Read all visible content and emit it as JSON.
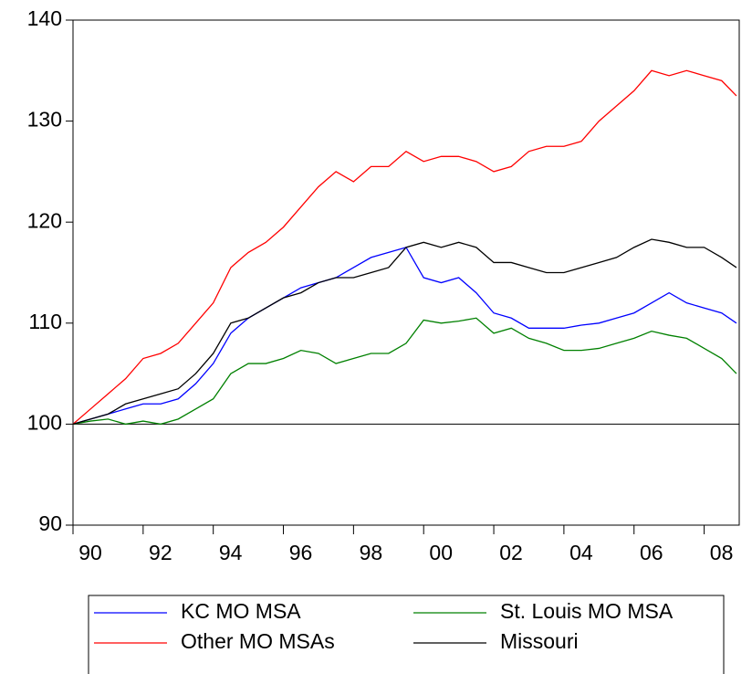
{
  "chart_data": {
    "type": "line",
    "x": [
      1990,
      1990.5,
      1991,
      1991.5,
      1992,
      1992.5,
      1993,
      1993.5,
      1994,
      1994.5,
      1995,
      1995.5,
      1996,
      1996.5,
      1997,
      1997.5,
      1998,
      1998.5,
      1999,
      1999.5,
      2000,
      2000.5,
      2001,
      2001.5,
      2002,
      2002.5,
      2003,
      2003.5,
      2004,
      2004.5,
      2005,
      2005.5,
      2006,
      2006.5,
      2007,
      2007.5,
      2008,
      2008.5,
      2008.92
    ],
    "series": [
      {
        "name": "KC MO MSA",
        "color": "#0000ff",
        "values": [
          100,
          100.5,
          101,
          101.5,
          102,
          102,
          102.5,
          104,
          106,
          109,
          110.5,
          111.5,
          112.5,
          113.5,
          114,
          114.5,
          115.5,
          116.5,
          117,
          117.5,
          114.5,
          114,
          114.5,
          113,
          111,
          110.5,
          109.5,
          109.5,
          109.5,
          109.8,
          110,
          110.5,
          111,
          112,
          113,
          112,
          111.5,
          111,
          110
        ]
      },
      {
        "name": "St. Louis MO MSA",
        "color": "#008000",
        "values": [
          100,
          100.3,
          100.5,
          100,
          100.3,
          100,
          100.5,
          101.5,
          102.5,
          105,
          106,
          106,
          106.5,
          107.3,
          107,
          106,
          106.5,
          107,
          107,
          108,
          110.3,
          110,
          110.2,
          110.5,
          109,
          109.5,
          108.5,
          108,
          107.3,
          107.3,
          107.5,
          108,
          108.5,
          109.2,
          108.8,
          108.5,
          107.5,
          106.5,
          105
        ]
      },
      {
        "name": "Other MO MSAs",
        "color": "#ff0000",
        "values": [
          100,
          101.5,
          103,
          104.5,
          106.5,
          107,
          108,
          110,
          112,
          115.5,
          117,
          118,
          119.5,
          121.5,
          123.5,
          125,
          124,
          125.5,
          125.5,
          127,
          126,
          126.5,
          126.5,
          126,
          125,
          125.5,
          127,
          127.5,
          127.5,
          128,
          130,
          131.5,
          133,
          135,
          134.5,
          135,
          134.5,
          134,
          132.5
        ]
      },
      {
        "name": "Missouri",
        "color": "#000000",
        "values": [
          100,
          100.5,
          101,
          102,
          102.5,
          103,
          103.5,
          105,
          107,
          110,
          110.5,
          111.5,
          112.5,
          113,
          114,
          114.5,
          114.5,
          115,
          115.5,
          117.5,
          118,
          117.5,
          118,
          117.5,
          116,
          116,
          115.5,
          115,
          115,
          115.5,
          116,
          116.5,
          117.5,
          118.3,
          118,
          117.5,
          117.5,
          116.5,
          115.5
        ]
      }
    ],
    "reference_line": 100,
    "xlim": [
      1990,
      2009
    ],
    "xticks": [
      {
        "value": 1990,
        "label": "90"
      },
      {
        "value": 1992,
        "label": "92"
      },
      {
        "value": 1994,
        "label": "94"
      },
      {
        "value": 1996,
        "label": "96"
      },
      {
        "value": 1998,
        "label": "98"
      },
      {
        "value": 2000,
        "label": "00"
      },
      {
        "value": 2002,
        "label": "02"
      },
      {
        "value": 2004,
        "label": "04"
      },
      {
        "value": 2006,
        "label": "06"
      },
      {
        "value": 2008,
        "label": "08"
      }
    ],
    "ylim": [
      90,
      140
    ],
    "yticks": [
      90,
      100,
      110,
      120,
      130,
      140
    ]
  }
}
